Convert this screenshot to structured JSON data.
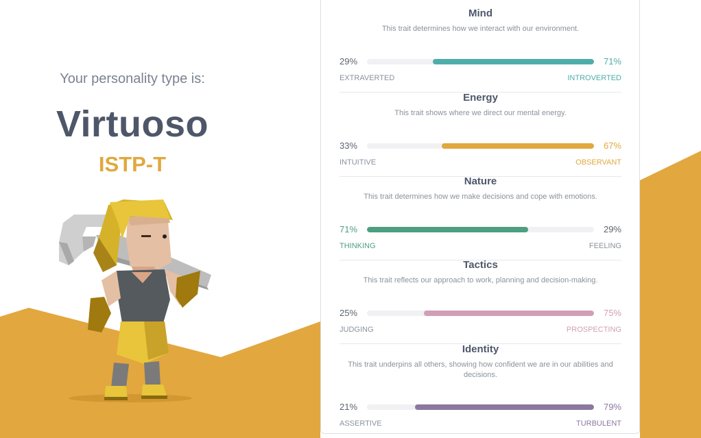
{
  "colors": {
    "mind": "#4eadaa",
    "energy": "#e0a83e",
    "nature": "#4e9e81",
    "tactics": "#d09fb6",
    "identity": "#8b78a0",
    "background_accent": "#e2a73f"
  },
  "profile": {
    "intro": "Your personality type is:",
    "type_name": "Virtuoso",
    "type_code": "ISTP-T"
  },
  "traits": [
    {
      "title": "Mind",
      "description": "This trait determines how we interact with our environment.",
      "left_percent": "29%",
      "right_percent": "71%",
      "left_label": "EXTRAVERTED",
      "right_label": "INTROVERTED",
      "dominant": "right",
      "dominant_value": 0.71,
      "color": "#4eadaa"
    },
    {
      "title": "Energy",
      "description": "This trait shows where we direct our mental energy.",
      "left_percent": "33%",
      "right_percent": "67%",
      "left_label": "INTUITIVE",
      "right_label": "OBSERVANT",
      "dominant": "right",
      "dominant_value": 0.67,
      "color": "#e0a83e"
    },
    {
      "title": "Nature",
      "description": "This trait determines how we make decisions and cope with emotions.",
      "left_percent": "71%",
      "right_percent": "29%",
      "left_label": "THINKING",
      "right_label": "FEELING",
      "dominant": "left",
      "dominant_value": 0.71,
      "color": "#4e9e81"
    },
    {
      "title": "Tactics",
      "description": "This trait reflects our approach to work, planning and decision-making.",
      "left_percent": "25%",
      "right_percent": "75%",
      "left_label": "JUDGING",
      "right_label": "PROSPECTING",
      "dominant": "right",
      "dominant_value": 0.75,
      "color": "#d09fb6"
    },
    {
      "title": "Identity",
      "description": "This trait underpins all others, showing how confident we are in our abilities and decisions.",
      "left_percent": "21%",
      "right_percent": "79%",
      "left_label": "ASSERTIVE",
      "right_label": "TURBULENT",
      "dominant": "right",
      "dominant_value": 0.79,
      "color": "#8b78a0"
    }
  ]
}
